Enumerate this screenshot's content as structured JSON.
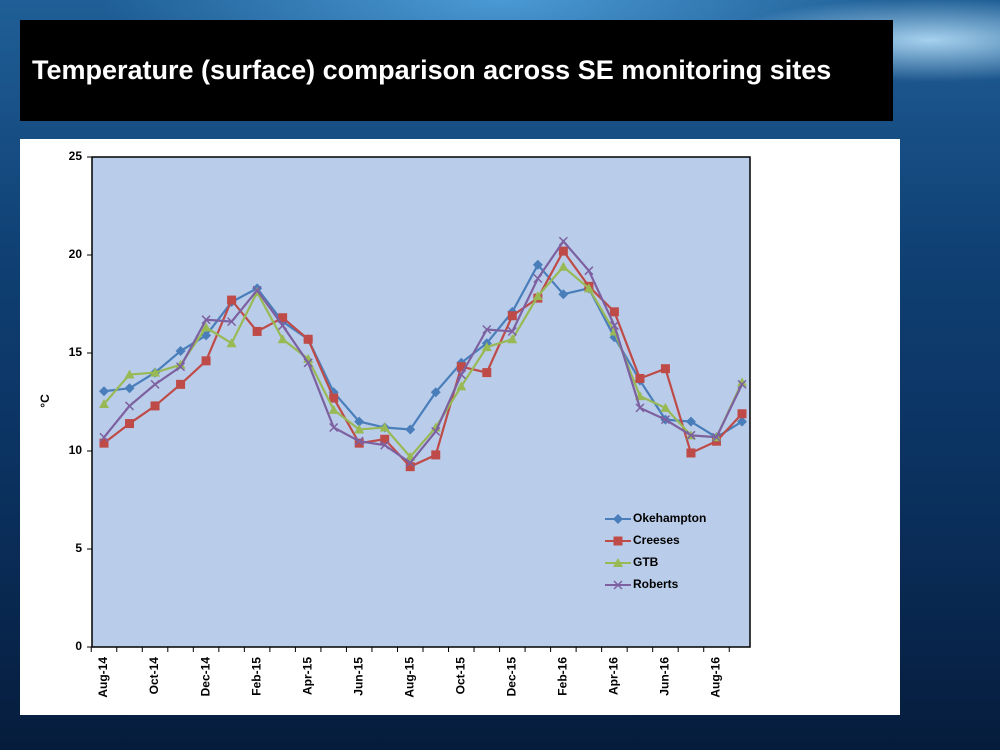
{
  "chart_data": {
    "type": "line",
    "title": "Temperature (surface) comparison across SE monitoring sites",
    "y_label": "°C",
    "categories": [
      "Aug-14",
      null,
      "Oct-14",
      null,
      "Dec-14",
      null,
      "Feb-15",
      null,
      "Apr-15",
      null,
      "Jun-15",
      null,
      "Aug-15",
      null,
      "Oct-15",
      null,
      "Dec-15",
      null,
      "Feb-16",
      null,
      "Apr-16",
      null,
      "Jun-16",
      null,
      "Aug-16",
      null
    ],
    "ylim": [
      0,
      25
    ],
    "yticks": [
      0,
      5,
      10,
      15,
      20,
      25
    ],
    "legend": "lower-right",
    "series": [
      {
        "name": "Okehampton",
        "color": "#4a7ebb",
        "marker": "diamond",
        "values": [
          13.05,
          13.2,
          14.0,
          15.1,
          15.9,
          17.6,
          18.3,
          16.6,
          15.7,
          13.0,
          11.5,
          11.2,
          11.1,
          13.0,
          14.5,
          15.5,
          17.1,
          19.5,
          18.0,
          18.3,
          15.8,
          13.6,
          11.6,
          11.5,
          10.7,
          11.5
        ]
      },
      {
        "name": "Creeses",
        "color": "#be4b48",
        "marker": "square",
        "values": [
          10.4,
          11.4,
          12.3,
          13.4,
          14.6,
          17.7,
          16.1,
          16.8,
          15.7,
          12.7,
          10.4,
          10.6,
          9.2,
          9.8,
          14.3,
          14.0,
          16.9,
          17.8,
          20.2,
          18.4,
          17.1,
          13.7,
          14.2,
          9.9,
          10.5,
          11.9
        ]
      },
      {
        "name": "GTB",
        "color": "#98b954",
        "marker": "triangle",
        "values": [
          12.4,
          13.9,
          14.0,
          14.4,
          16.3,
          15.5,
          18.1,
          15.7,
          14.7,
          12.1,
          11.1,
          11.2,
          9.7,
          11.2,
          13.3,
          15.3,
          15.7,
          17.9,
          19.4,
          18.3,
          16.1,
          12.8,
          12.2,
          10.8,
          10.7,
          13.5
        ]
      },
      {
        "name": "Roberts",
        "color": "#7d60a0",
        "marker": "cross",
        "values": [
          10.7,
          12.3,
          13.4,
          14.3,
          16.7,
          16.6,
          18.2,
          16.4,
          14.5,
          11.2,
          10.5,
          10.3,
          9.4,
          11.0,
          13.9,
          16.2,
          16.1,
          18.8,
          20.7,
          19.2,
          16.4,
          12.2,
          11.6,
          10.8,
          10.7,
          13.4
        ]
      }
    ]
  }
}
